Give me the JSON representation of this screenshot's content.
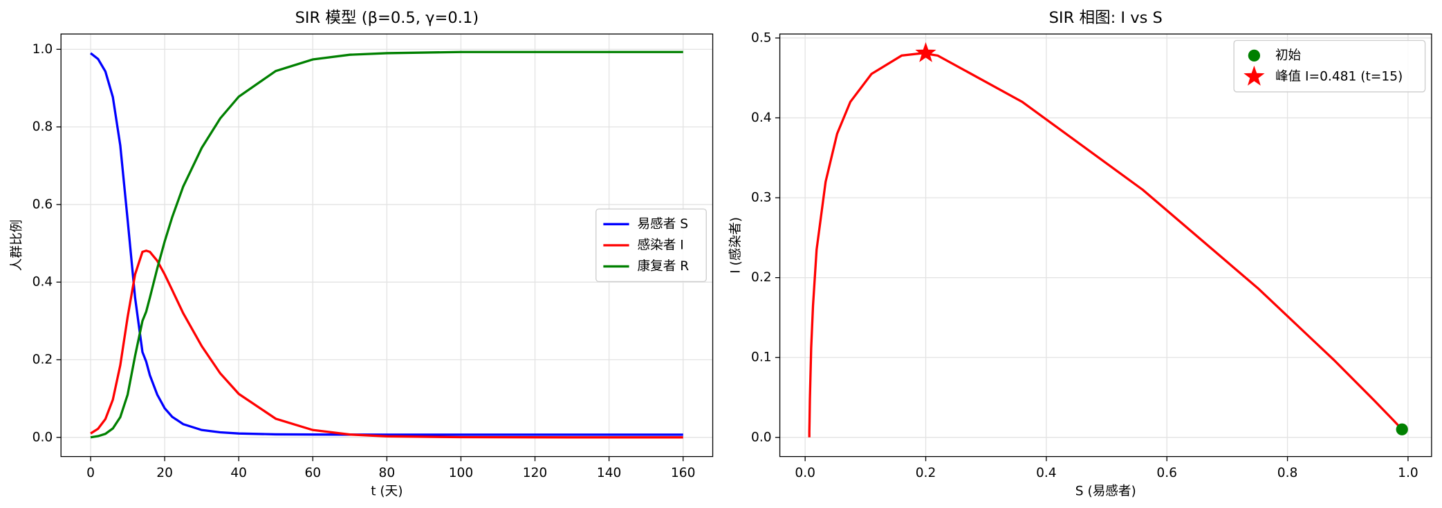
{
  "chart_data": [
    {
      "type": "line",
      "title": "SIR 模型 (β=0.5, γ=0.1)",
      "xlabel": "t (天)",
      "ylabel": "人群比例",
      "x": [
        0,
        2,
        4,
        6,
        8,
        10,
        12,
        14,
        15,
        16,
        18,
        20,
        22,
        25,
        30,
        35,
        40,
        50,
        60,
        70,
        80,
        100,
        130,
        160
      ],
      "series": [
        {
          "name": "易感者 S",
          "color": "#0000ff",
          "values": [
            0.99,
            0.975,
            0.943,
            0.877,
            0.752,
            0.56,
            0.36,
            0.22,
            0.195,
            0.16,
            0.11,
            0.075,
            0.053,
            0.034,
            0.019,
            0.013,
            0.01,
            0.0078,
            0.0072,
            0.007,
            0.0069,
            0.0069,
            0.0069,
            0.0069
          ]
        },
        {
          "name": "感染者 I",
          "color": "#ff0000",
          "values": [
            0.01,
            0.022,
            0.047,
            0.097,
            0.186,
            0.31,
            0.42,
            0.478,
            0.481,
            0.478,
            0.455,
            0.42,
            0.38,
            0.32,
            0.235,
            0.165,
            0.112,
            0.048,
            0.019,
            0.0072,
            0.0027,
            0.0004,
            2e-05,
            0.0
          ]
        },
        {
          "name": "康复者 R",
          "color": "#008000",
          "values": [
            0.0,
            0.003,
            0.009,
            0.023,
            0.052,
            0.11,
            0.21,
            0.3,
            0.324,
            0.36,
            0.435,
            0.505,
            0.567,
            0.646,
            0.746,
            0.822,
            0.878,
            0.944,
            0.974,
            0.986,
            0.99,
            0.993,
            0.9931,
            0.9931
          ]
        }
      ],
      "xlim": [
        -8,
        168
      ],
      "xticks": [
        0,
        20,
        40,
        60,
        80,
        100,
        120,
        140,
        160
      ],
      "ylim": [
        -0.0495,
        1.0395
      ],
      "yticks": [
        {
          "value": 0,
          "label": "0.0"
        },
        0.2,
        0.4,
        0.6,
        0.8,
        {
          "value": 1,
          "label": "1.0"
        }
      ],
      "grid": true,
      "legend": "center right"
    },
    {
      "type": "phase",
      "title": "SIR 相图: I vs S",
      "xlabel": "S (易感者)",
      "ylabel": "I (感染者)",
      "x": [
        0.99,
        0.975,
        0.943,
        0.877,
        0.752,
        0.56,
        0.36,
        0.22,
        0.195,
        0.16,
        0.11,
        0.075,
        0.053,
        0.034,
        0.019,
        0.013,
        0.01,
        0.0078,
        0.0072,
        0.007,
        0.0069,
        0.0069,
        0.0069,
        0.0069
      ],
      "values": [
        0.01,
        0.022,
        0.047,
        0.097,
        0.186,
        0.31,
        0.42,
        0.478,
        0.481,
        0.478,
        0.455,
        0.42,
        0.38,
        0.32,
        0.235,
        0.165,
        0.112,
        0.048,
        0.019,
        0.0072,
        0.0027,
        0.0004,
        2e-05,
        0.0
      ],
      "color": "#ff0000",
      "markers": [
        {
          "name": "初始",
          "color": "#008000",
          "marker": "circle",
          "x": 0.99,
          "y": 0.01
        },
        {
          "name": "峰值 I=0.481 (t=15)",
          "color": "#ff0000",
          "marker": "star",
          "x": 0.2,
          "y": 0.481
        }
      ],
      "xlim": [
        -0.042,
        1.039
      ],
      "xticks": [
        {
          "value": 0,
          "label": "0.0"
        },
        0.2,
        0.4,
        0.6,
        0.8,
        {
          "value": 1,
          "label": "1.0"
        }
      ],
      "ylim": [
        -0.024,
        0.505
      ],
      "yticks": [
        {
          "value": 0,
          "label": "0.0"
        },
        0.1,
        0.2,
        0.3,
        0.4,
        0.5
      ],
      "grid": true,
      "legend": "upper right"
    }
  ]
}
